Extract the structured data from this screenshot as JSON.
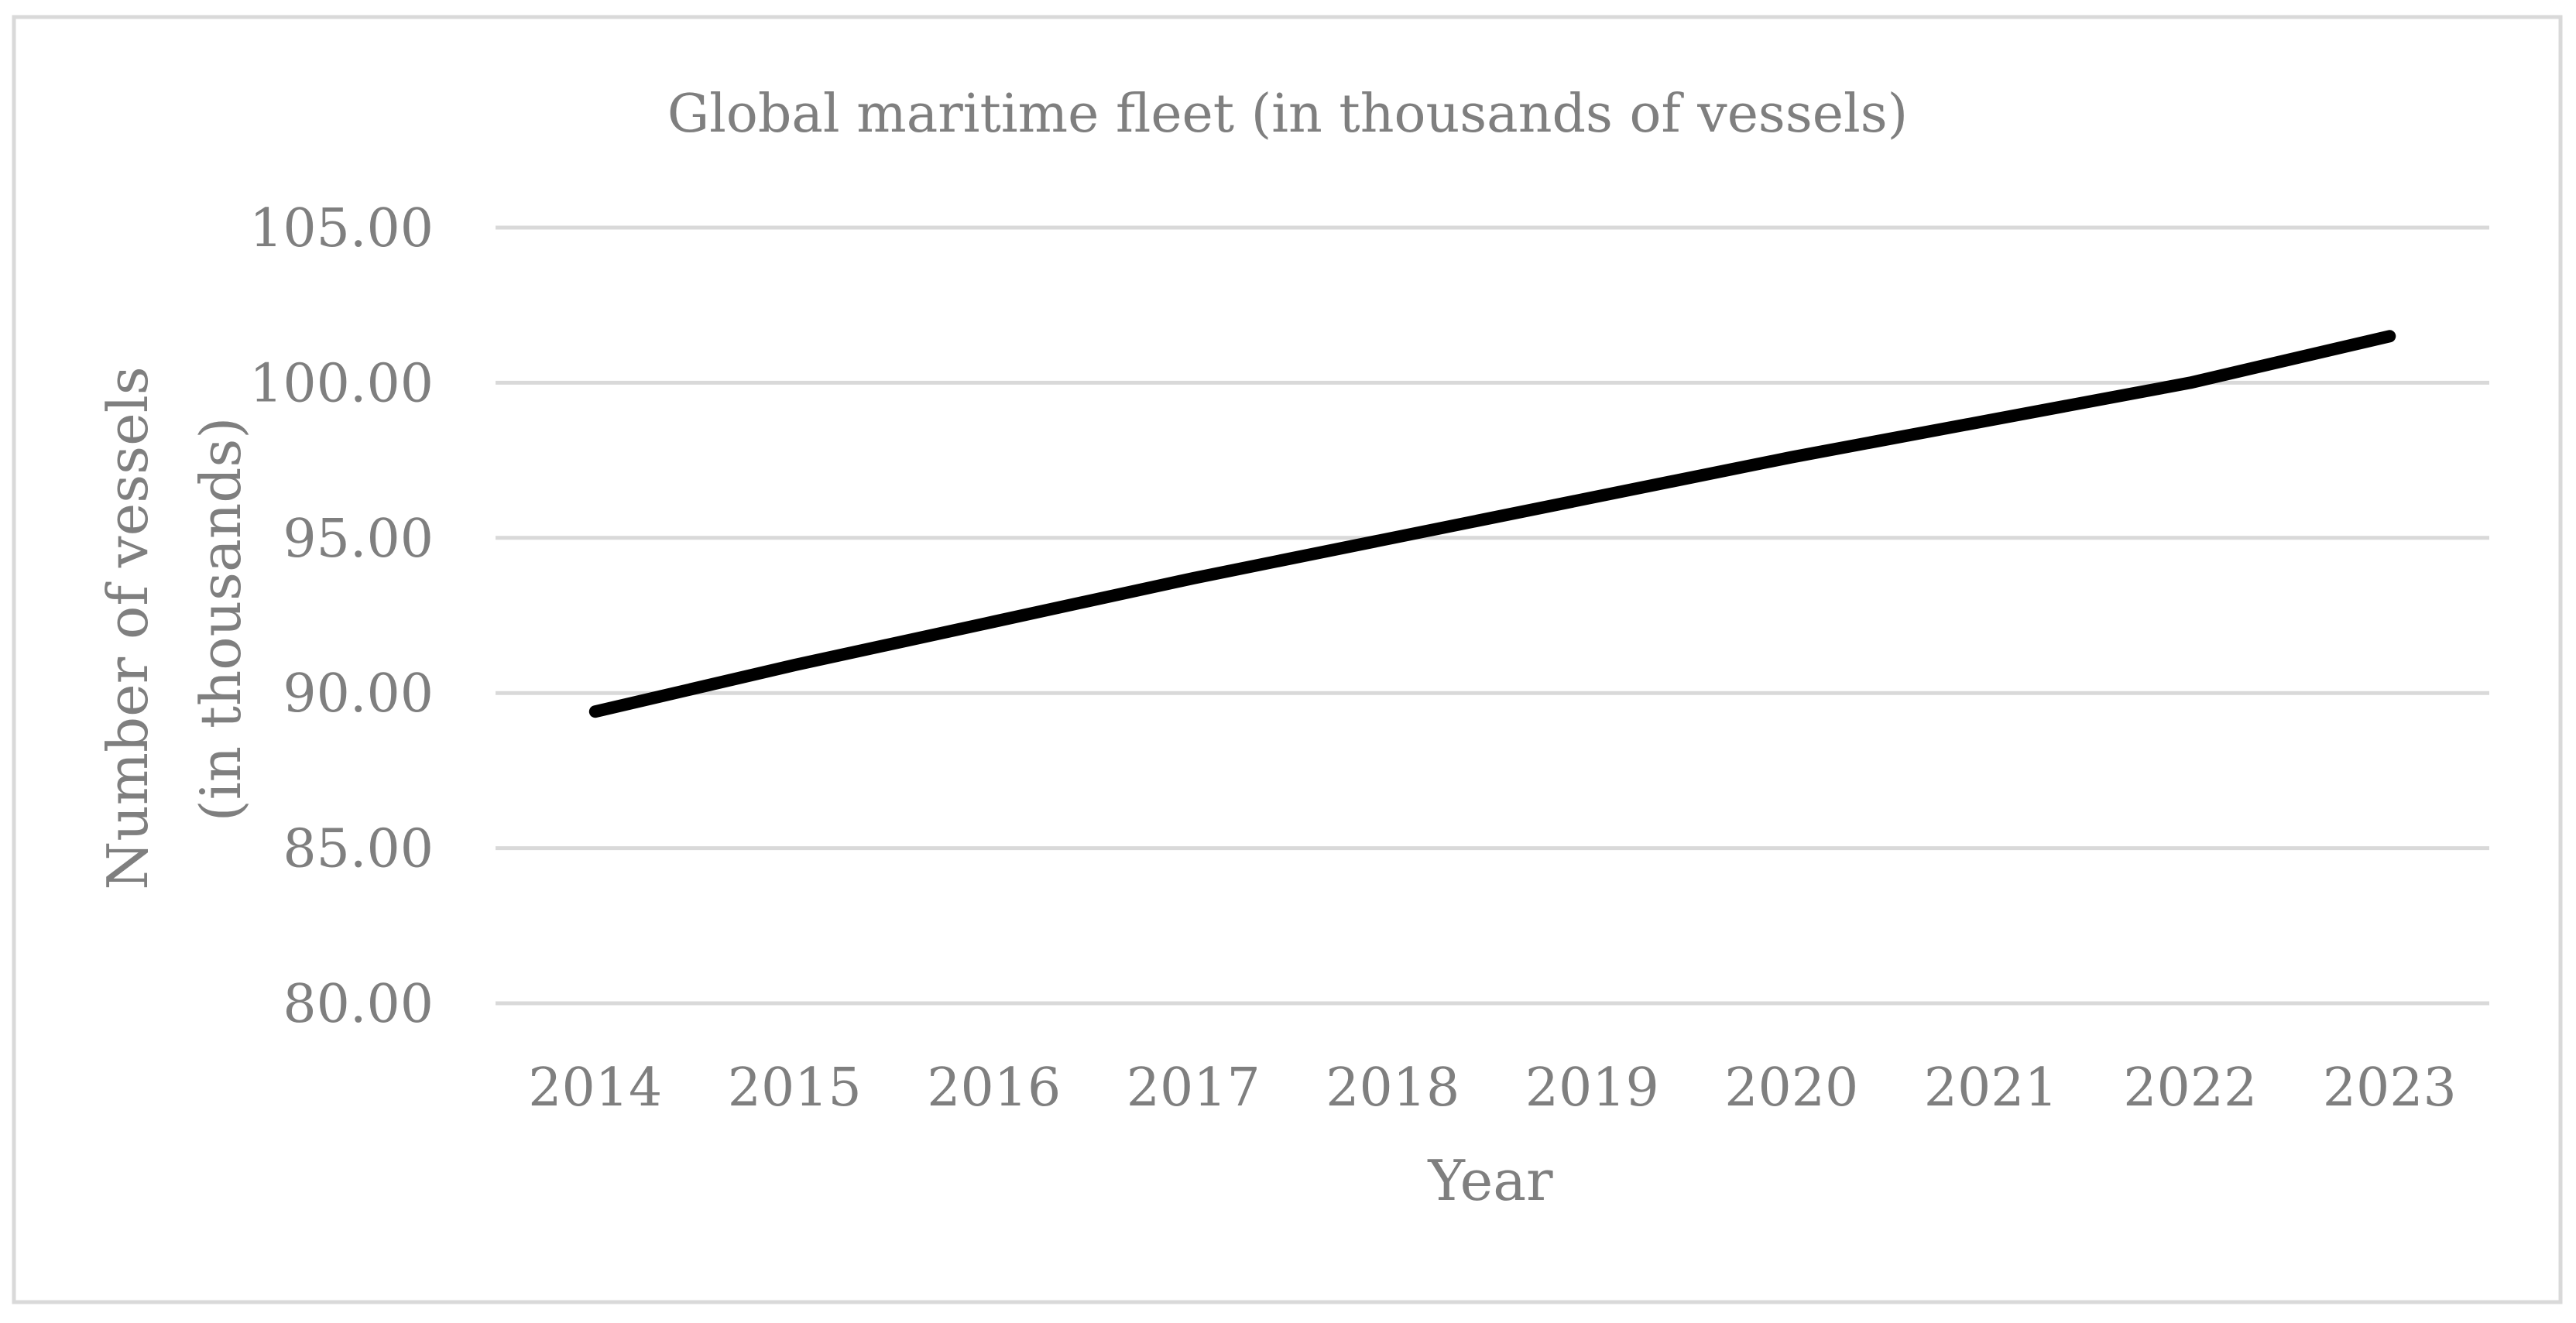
{
  "chart_data": {
    "type": "line",
    "title": "Global maritime fleet (in thousands of vessels)",
    "xlabel": "Year",
    "ylabel_lines": [
      "Number of vessels",
      "(in thousands)"
    ],
    "categories": [
      "2014",
      "2015",
      "2016",
      "2017",
      "2018",
      "2019",
      "2020",
      "2021",
      "2022",
      "2023"
    ],
    "series": [
      {
        "name": "Global maritime fleet",
        "values": [
          89.4,
          90.9,
          92.3,
          93.7,
          95.0,
          96.3,
          97.6,
          98.8,
          100.0,
          101.5
        ]
      }
    ],
    "ylim": [
      80,
      105
    ],
    "y_ticks": [
      "80.00",
      "85.00",
      "90.00",
      "95.00",
      "100.00",
      "105.00"
    ],
    "grid": true,
    "legend": "none",
    "colors": {
      "line": "#000000",
      "grid": "#d9d9d9",
      "text": "#7f7f7f",
      "border": "#d9d9d9"
    }
  }
}
